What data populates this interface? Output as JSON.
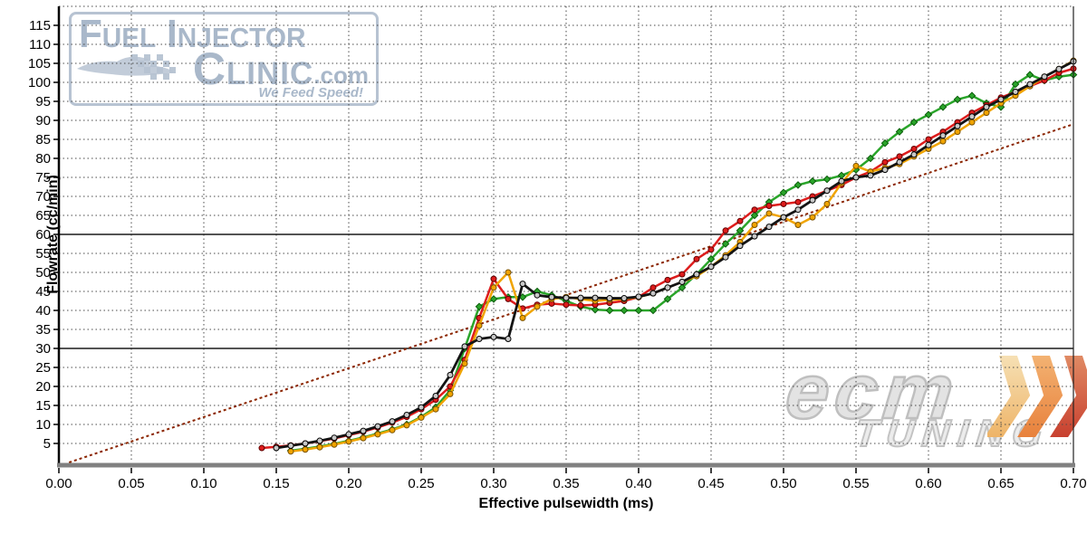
{
  "watermarks": {
    "fic_logo": {
      "line1": "Fuel Injector",
      "line2": "Clinic",
      "domain": ".com",
      "tagline": "We Feed Speed!",
      "color": "#a9b8ca"
    },
    "ecm_logo": {
      "line1": "ecm",
      "line2": "TUNING",
      "color": "#c9c9c9",
      "chevron_colors": [
        "#f4d9a6",
        "#efa152",
        "#d05040"
      ]
    }
  },
  "chart_data": {
    "type": "line",
    "title": "",
    "xlabel": "Effective pulsewidth (ms)",
    "ylabel": "Flowrate (cc/min)",
    "xlim": [
      0,
      0.7
    ],
    "ylim": [
      0,
      120
    ],
    "grid": "dotted",
    "legend": "none",
    "x_ticks": [
      0.0,
      0.05,
      0.1,
      0.15,
      0.2,
      0.25,
      0.3,
      0.35,
      0.4,
      0.45,
      0.5,
      0.55,
      0.6,
      0.65,
      0.7
    ],
    "x_tick_labels": [
      "0.00",
      "0.05",
      "0.10",
      "0.15",
      "0.20",
      "0.25",
      "0.30",
      "0.35",
      "0.40",
      "0.45",
      "0.50",
      "0.55",
      "0.60",
      "0.65",
      "0.70"
    ],
    "y_ticks": [
      5,
      10,
      15,
      20,
      25,
      30,
      35,
      40,
      45,
      50,
      55,
      60,
      65,
      70,
      75,
      80,
      85,
      90,
      95,
      100,
      105,
      110,
      115
    ],
    "y_tick_labels": [
      "5",
      "10",
      "15",
      "20",
      "25",
      "30",
      "35",
      "40",
      "45",
      "50",
      "55",
      "60",
      "65",
      "70",
      "75",
      "80",
      "85",
      "90",
      "95",
      "100",
      "105",
      "110",
      "115"
    ],
    "solid_gridlines_y": [
      30,
      60
    ],
    "reference_line": {
      "name": "linear-reference",
      "color": "#8b2500",
      "style": "dotted",
      "x": [
        0.007,
        0.7
      ],
      "y": [
        0,
        89
      ]
    },
    "series": [
      {
        "name": "green",
        "color": "#2aa52a",
        "marker": "diamond",
        "marker_fill": "#2aa52a",
        "marker_stroke": "#0c5c0c",
        "x": [
          0.16,
          0.17,
          0.18,
          0.19,
          0.2,
          0.21,
          0.22,
          0.23,
          0.24,
          0.25,
          0.26,
          0.27,
          0.28,
          0.29,
          0.3,
          0.31,
          0.32,
          0.33,
          0.34,
          0.35,
          0.36,
          0.37,
          0.38,
          0.39,
          0.4,
          0.41,
          0.42,
          0.43,
          0.44,
          0.45,
          0.46,
          0.47,
          0.48,
          0.49,
          0.5,
          0.51,
          0.52,
          0.53,
          0.54,
          0.55,
          0.56,
          0.57,
          0.58,
          0.59,
          0.6,
          0.61,
          0.62,
          0.63,
          0.64,
          0.65,
          0.66,
          0.67,
          0.68,
          0.69,
          0.7
        ],
        "y": [
          3.1,
          3.6,
          4.2,
          4.9,
          5.7,
          6.6,
          7.6,
          8.7,
          10.0,
          12.0,
          14.5,
          19.0,
          30.0,
          41.0,
          43.0,
          43.5,
          43.5,
          45.0,
          44.0,
          42.5,
          41.0,
          40.2,
          40.0,
          40.0,
          40.0,
          40.0,
          43.0,
          46.0,
          49.5,
          53.5,
          57.5,
          61.0,
          65.0,
          68.5,
          71.0,
          73.0,
          74.0,
          74.5,
          75.5,
          77.0,
          80.0,
          84.0,
          87.0,
          89.5,
          91.5,
          93.5,
          95.5,
          96.5,
          94.5,
          93.5,
          99.5,
          102.0,
          100.5,
          101.5,
          102.0
        ]
      },
      {
        "name": "red",
        "color": "#dd1c1c",
        "marker": "circle",
        "marker_fill": "#dd1c1c",
        "marker_stroke": "#5e0000",
        "x": [
          0.14,
          0.15,
          0.16,
          0.17,
          0.18,
          0.19,
          0.2,
          0.21,
          0.22,
          0.23,
          0.24,
          0.25,
          0.26,
          0.27,
          0.28,
          0.29,
          0.3,
          0.31,
          0.32,
          0.33,
          0.34,
          0.35,
          0.36,
          0.37,
          0.38,
          0.39,
          0.4,
          0.41,
          0.42,
          0.43,
          0.44,
          0.45,
          0.46,
          0.47,
          0.48,
          0.49,
          0.5,
          0.51,
          0.52,
          0.53,
          0.54,
          0.55,
          0.56,
          0.57,
          0.58,
          0.59,
          0.6,
          0.61,
          0.62,
          0.63,
          0.64,
          0.65,
          0.66,
          0.67,
          0.68,
          0.69,
          0.7
        ],
        "y": [
          3.8,
          4.1,
          4.5,
          5.0,
          5.6,
          6.3,
          7.2,
          8.1,
          9.2,
          10.5,
          12.0,
          14.0,
          16.5,
          20.0,
          27.0,
          38.0,
          48.3,
          43.0,
          40.5,
          41.5,
          41.8,
          41.5,
          41.3,
          41.5,
          42.0,
          42.5,
          43.5,
          46.0,
          48.0,
          49.5,
          53.5,
          56.0,
          61.0,
          63.5,
          66.5,
          67.5,
          68.0,
          68.5,
          70.0,
          71.5,
          73.0,
          75.0,
          76.5,
          79.0,
          80.5,
          82.5,
          85.0,
          87.0,
          89.5,
          92.0,
          94.0,
          96.0,
          97.5,
          99.0,
          100.5,
          102.5,
          103.6
        ]
      },
      {
        "name": "orange",
        "color": "#f0a400",
        "marker": "circle",
        "marker_fill": "#f0a400",
        "marker_stroke": "#7a5200",
        "x": [
          0.16,
          0.17,
          0.18,
          0.19,
          0.2,
          0.21,
          0.22,
          0.23,
          0.24,
          0.25,
          0.26,
          0.27,
          0.28,
          0.29,
          0.3,
          0.31,
          0.32,
          0.33,
          0.34,
          0.35,
          0.36,
          0.37,
          0.38,
          0.39,
          0.4,
          0.41,
          0.42,
          0.43,
          0.44,
          0.45,
          0.46,
          0.47,
          0.48,
          0.49,
          0.5,
          0.51,
          0.52,
          0.53,
          0.54,
          0.55,
          0.56,
          0.57,
          0.58,
          0.59,
          0.6,
          0.61,
          0.62,
          0.63,
          0.64,
          0.65,
          0.66,
          0.67,
          0.68,
          0.69,
          0.7
        ],
        "y": [
          2.9,
          3.4,
          4.0,
          4.7,
          5.5,
          6.4,
          7.4,
          8.5,
          9.8,
          11.8,
          14.0,
          18.0,
          26.0,
          36.0,
          46.0,
          50.0,
          38.0,
          41.0,
          43.0,
          43.5,
          43.0,
          42.5,
          42.8,
          43.0,
          43.5,
          44.5,
          46.0,
          47.5,
          49.0,
          51.5,
          54.5,
          58.0,
          62.5,
          65.5,
          64.5,
          62.5,
          64.5,
          68.0,
          73.5,
          78.0,
          76.5,
          77.5,
          78.5,
          80.5,
          82.5,
          84.5,
          87.0,
          89.5,
          92.0,
          94.5,
          96.5,
          99.0,
          101.5,
          103.5,
          105.7
        ]
      },
      {
        "name": "black",
        "color": "#141414",
        "marker": "circle",
        "marker_fill": "#c8c8c8",
        "marker_stroke": "#000000",
        "x": [
          0.15,
          0.16,
          0.17,
          0.18,
          0.19,
          0.2,
          0.21,
          0.22,
          0.23,
          0.24,
          0.25,
          0.26,
          0.27,
          0.28,
          0.29,
          0.3,
          0.31,
          0.32,
          0.33,
          0.34,
          0.35,
          0.36,
          0.37,
          0.38,
          0.39,
          0.4,
          0.41,
          0.42,
          0.43,
          0.44,
          0.45,
          0.46,
          0.47,
          0.48,
          0.49,
          0.5,
          0.51,
          0.52,
          0.53,
          0.54,
          0.55,
          0.56,
          0.57,
          0.58,
          0.59,
          0.6,
          0.61,
          0.62,
          0.63,
          0.64,
          0.65,
          0.66,
          0.67,
          0.68,
          0.69,
          0.7
        ],
        "y": [
          3.8,
          4.4,
          5.0,
          5.7,
          6.5,
          7.4,
          8.3,
          9.5,
          10.8,
          12.5,
          14.5,
          17.5,
          23.0,
          30.5,
          32.5,
          33.0,
          32.5,
          47.0,
          44.0,
          43.5,
          43.3,
          43.3,
          43.3,
          43.2,
          43.2,
          43.6,
          44.5,
          46.0,
          47.5,
          49.5,
          51.5,
          54.0,
          57.0,
          59.5,
          62.0,
          64.5,
          66.5,
          69.0,
          71.5,
          74.0,
          75.0,
          75.5,
          77.0,
          79.0,
          81.0,
          83.5,
          86.0,
          88.5,
          91.0,
          93.5,
          95.5,
          97.5,
          99.5,
          101.5,
          103.5,
          105.5
        ]
      }
    ]
  }
}
